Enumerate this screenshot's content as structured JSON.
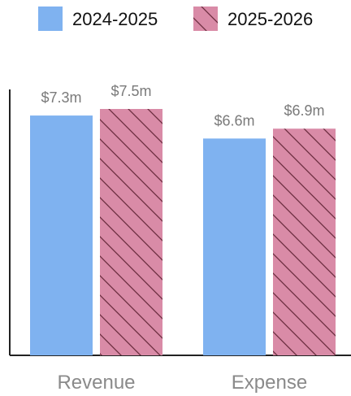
{
  "chart_data": {
    "type": "bar",
    "categories": [
      "Revenue",
      "Expense"
    ],
    "series": [
      {
        "name": "2024-2025",
        "values": [
          7.3,
          6.6
        ],
        "labels": [
          "$7.3m",
          "$6.6m"
        ],
        "color": "#7FB2F0",
        "pattern": "solid"
      },
      {
        "name": "2025-2026",
        "values": [
          7.5,
          6.9
        ],
        "labels": [
          "$7.5m",
          "$6.9m"
        ],
        "color": "#D98BA7",
        "pattern": "diagonal-hatch"
      }
    ],
    "title": "",
    "xlabel": "",
    "ylabel": "",
    "ylim": [
      0,
      7.5
    ],
    "grid": false,
    "legend": "top-center"
  }
}
